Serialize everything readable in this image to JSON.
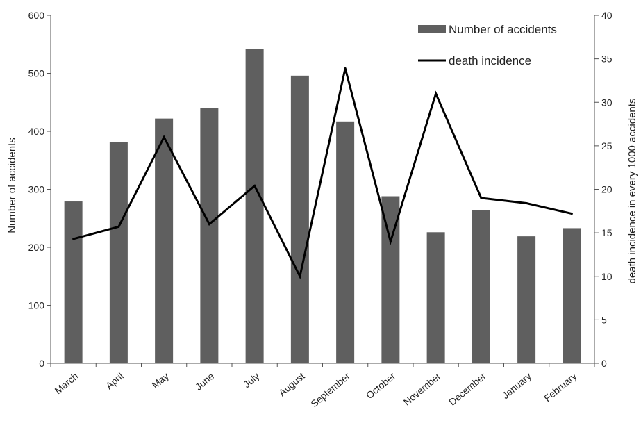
{
  "chart_data": {
    "type": "bar",
    "categories": [
      "March",
      "April",
      "May",
      "June",
      "July",
      "August",
      "September",
      "October",
      "November",
      "December",
      "January",
      "February"
    ],
    "series": [
      {
        "name": "Number of accidents",
        "type": "bar",
        "axis": "left",
        "color": "#5f5f5f",
        "values": [
          279,
          381,
          422,
          440,
          542,
          496,
          417,
          288,
          226,
          264,
          219,
          233
        ]
      },
      {
        "name": "death incidence",
        "type": "line",
        "axis": "right",
        "color": "#000000",
        "values": [
          14.3,
          15.7,
          26.0,
          16.0,
          20.4,
          10.0,
          33.9,
          14.0,
          31.0,
          19.0,
          18.4,
          17.2
        ]
      }
    ],
    "ylabel": "Number of accidents",
    "y2label": "death incidence in every 1000 accidents",
    "ylim": [
      0,
      600
    ],
    "y2lim": [
      0,
      40
    ],
    "yticks": [
      "0",
      "100",
      "200",
      "300",
      "400",
      "500",
      "600"
    ],
    "y2ticks": [
      "0",
      "5",
      "10",
      "15",
      "20",
      "25",
      "30",
      "35",
      "40"
    ],
    "grid": false,
    "legend_position": "top-right"
  }
}
